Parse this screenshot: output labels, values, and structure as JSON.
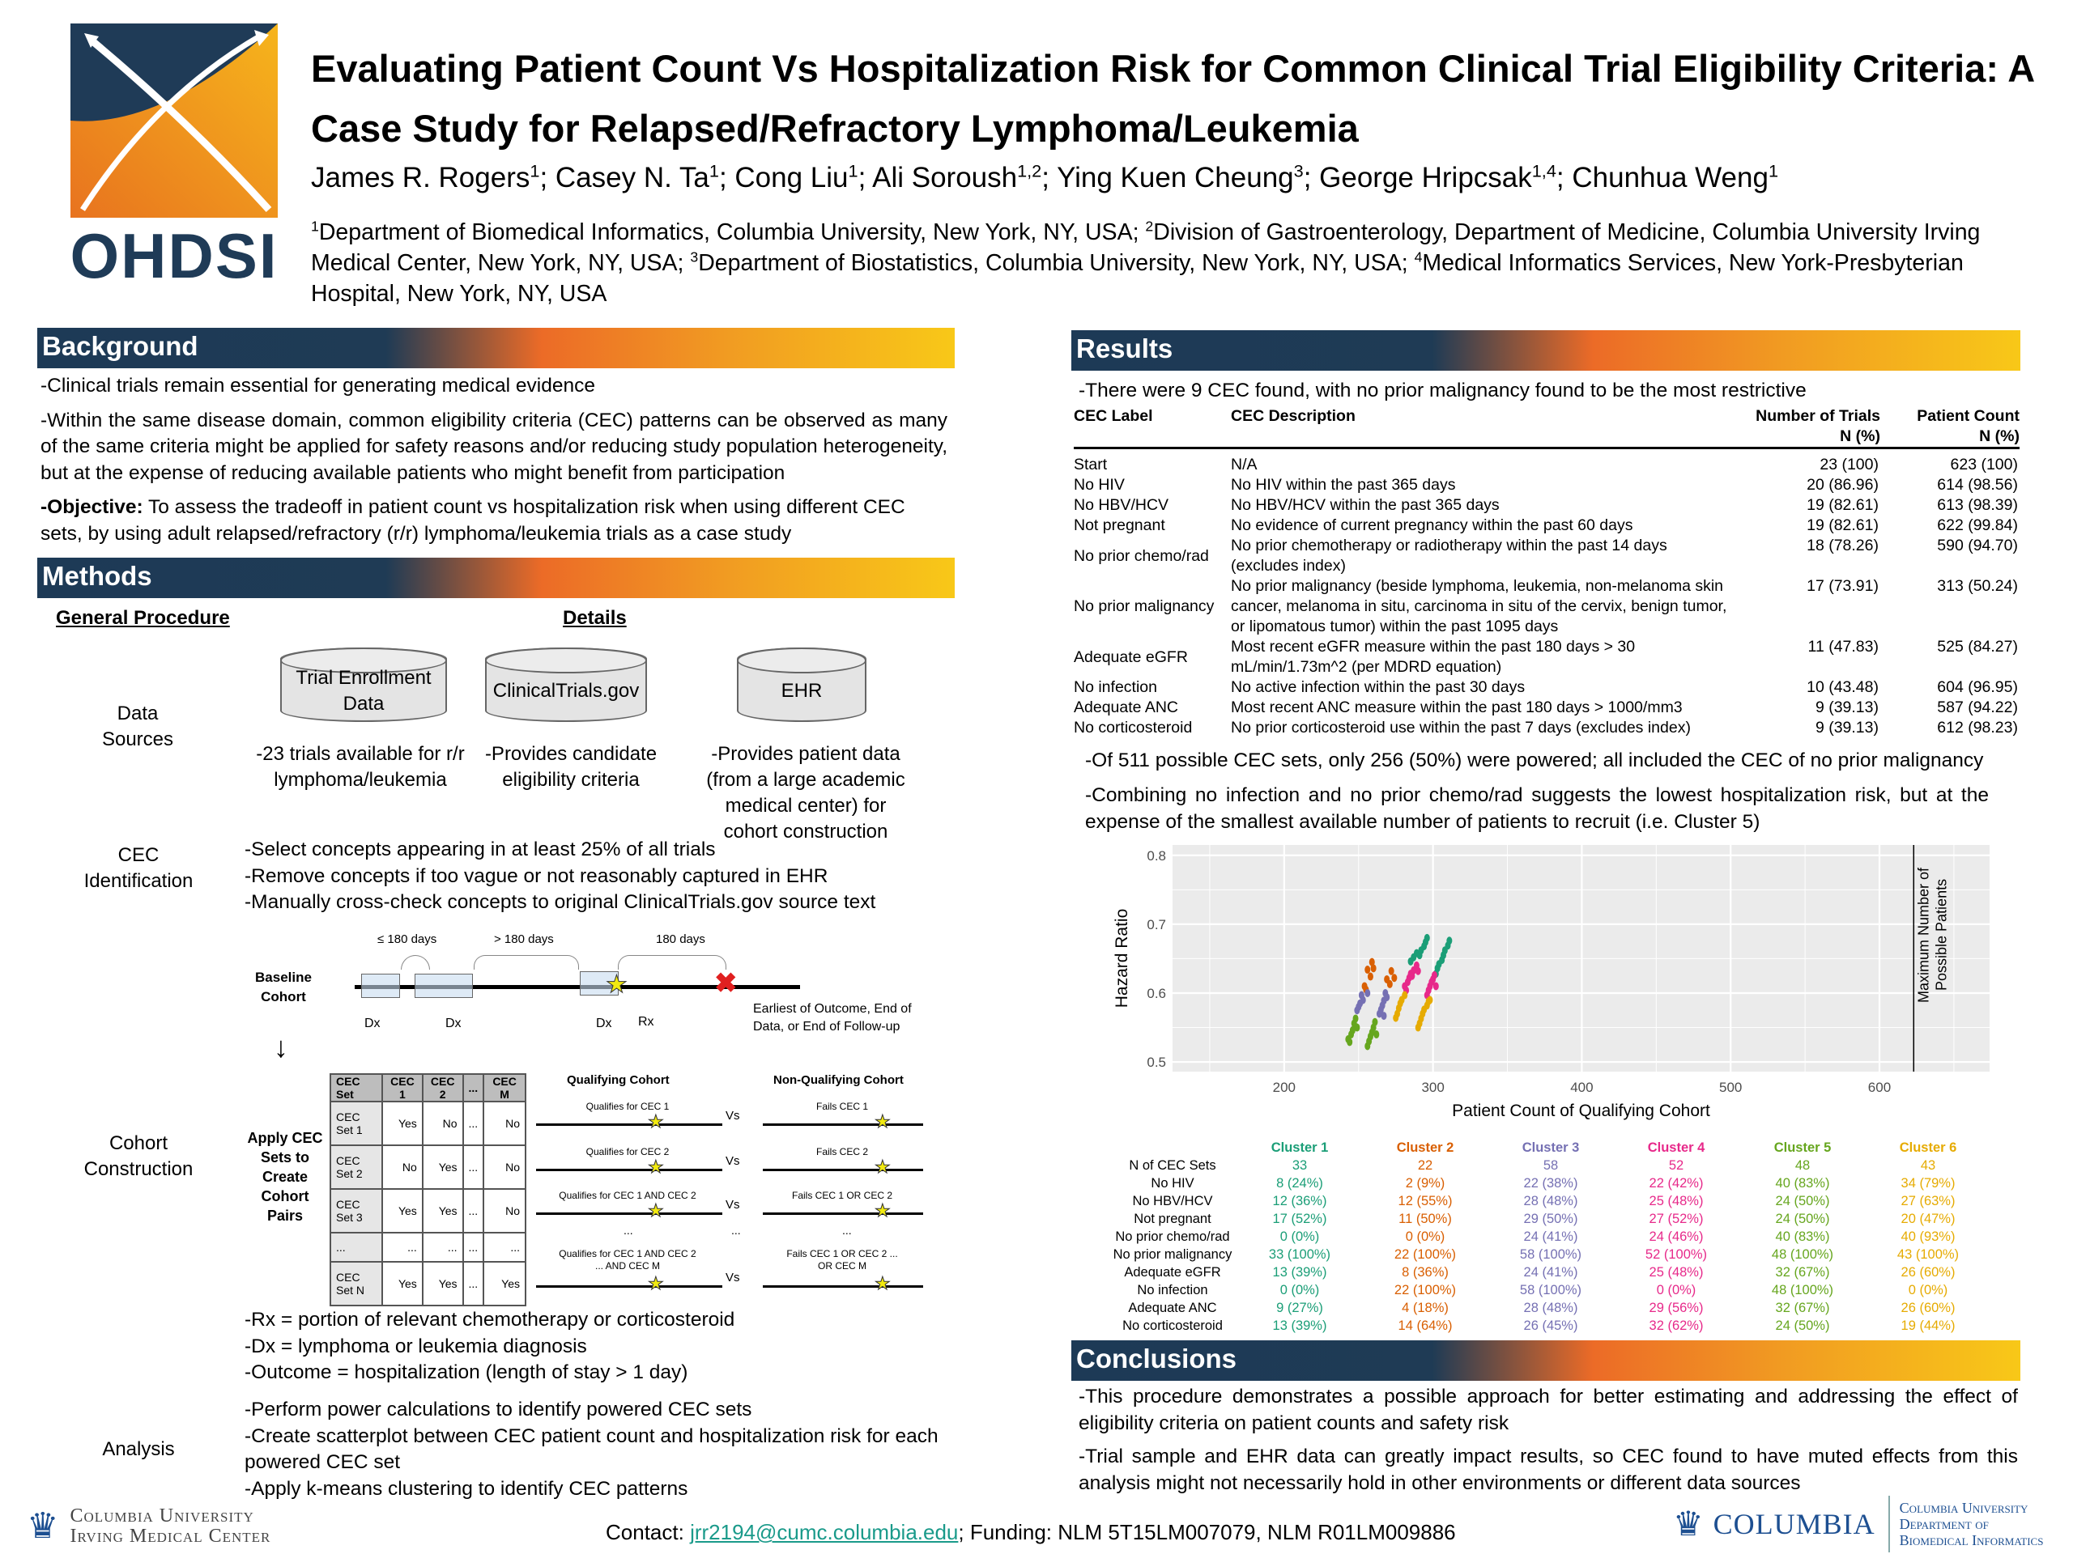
{
  "header": {
    "logo_text": "OHDSI",
    "title": "Evaluating Patient Count Vs Hospitalization Risk for Common Clinical Trial Eligibility Criteria: A Case Study for Relapsed/Refractory Lymphoma/Leukemia",
    "authors": [
      {
        "name": "James R. Rogers",
        "sup": "1"
      },
      {
        "name": "Casey N. Ta",
        "sup": "1"
      },
      {
        "name": "Cong Liu",
        "sup": "1"
      },
      {
        "name": "Ali Soroush",
        "sup": "1,2"
      },
      {
        "name": "Ying Kuen Cheung",
        "sup": "3"
      },
      {
        "name": "George Hripcsak",
        "sup": "1,4"
      },
      {
        "name": "Chunhua Weng",
        "sup": "1"
      }
    ],
    "affiliations": [
      {
        "sup": "1",
        "text": "Department of Biomedical Informatics, Columbia University, New York, NY, USA; "
      },
      {
        "sup": "2",
        "text": "Division of Gastroenterology, Department of Medicine, Columbia University Irving Medical Center, New York, NY, USA; "
      },
      {
        "sup": "3",
        "text": "Department of Biostatistics, Columbia University, New York, NY, USA; "
      },
      {
        "sup": "4",
        "text": "Medical Informatics Services, New York-Presbyterian Hospital, New York, NY, USA"
      }
    ]
  },
  "background": {
    "heading": "Background",
    "p1": "-Clinical trials remain essential for generating medical evidence",
    "p2": "-Within the same disease domain, common eligibility criteria (CEC) patterns can be observed as many of the same criteria might be applied for safety reasons and/or reducing study population heterogeneity, but at the expense of reducing available patients who might benefit from participation",
    "p3_label": "-Objective:",
    "p3": " To assess the tradeoff in patient count vs hospitalization risk when using different CEC sets, by using adult relapsed/refractory (r/r) lymphoma/leukemia trials as a case study"
  },
  "methods": {
    "heading": "Methods",
    "col1": "General Procedure",
    "col2": "Details",
    "data_sources_label": "Data Sources",
    "sources": [
      {
        "name": "Trial Enrollment Data",
        "caption": "-23 trials available for r/r lymphoma/leukemia"
      },
      {
        "name": "ClinicalTrials.gov",
        "caption": "-Provides candidate eligibility criteria"
      },
      {
        "name": "EHR",
        "caption": "-Provides patient data (from a large academic medical center) for cohort construction"
      }
    ],
    "cec_label": "CEC Identification",
    "cec_bullets": [
      "-Select concepts appearing in at least 25% of all trials",
      "-Remove concepts if too vague or not reasonably captured in EHR",
      "-Manually cross-check concepts to original ClinicalTrials.gov source text"
    ],
    "timeline": {
      "cohort": "Baseline Cohort",
      "gap1": "≤ 180 days",
      "gap2": "> 180 days",
      "gap3": "180 days",
      "dx": "Dx",
      "rx": "Rx",
      "end": "Earliest of Outcome, End of Data, or End of Follow-up"
    },
    "cohort_label": "Cohort Construction",
    "apply_label": "Apply CEC Sets to Create Cohort Pairs",
    "grid": {
      "headers": [
        "CEC Set",
        "CEC 1",
        "CEC 2",
        "...",
        "CEC M"
      ],
      "rows": [
        [
          "CEC Set 1",
          "Yes",
          "No",
          "...",
          "No"
        ],
        [
          "CEC Set 2",
          "No",
          "Yes",
          "...",
          "No"
        ],
        [
          "CEC Set 3",
          "Yes",
          "Yes",
          "...",
          "No"
        ],
        [
          "...",
          "...",
          "...",
          "...",
          "..."
        ],
        [
          "CEC Set N",
          "Yes",
          "Yes",
          "...",
          "Yes"
        ]
      ]
    },
    "qual_head": "Qualifying Cohort",
    "nonqual_head": "Non-Qualifying Cohort",
    "vs": "Vs",
    "ellipsis": "...",
    "qual": [
      "Qualifies for CEC 1",
      "Qualifies for CEC 2",
      "Qualifies for CEC 1 AND CEC 2",
      "Qualifies for CEC 1 AND CEC 2 ... AND CEC M"
    ],
    "nonqual": [
      "Fails CEC 1",
      "Fails CEC 2",
      "Fails CEC 1 OR CEC 2",
      "Fails CEC 1 OR CEC 2 ... OR CEC M"
    ],
    "defs": [
      "-Rx = portion of relevant chemotherapy or corticosteroid",
      "-Dx = lymphoma or leukemia diagnosis",
      "-Outcome = hospitalization (length of stay > 1 day)"
    ],
    "analysis_label": "Analysis",
    "analysis": [
      "-Perform power calculations to identify powered CEC sets",
      "-Create scatterplot between CEC patient count and hospitalization risk for each powered CEC set",
      "-Apply k-means clustering to identify CEC patterns"
    ]
  },
  "results": {
    "heading": "Results",
    "intro": "-There were 9 CEC found, with no prior malignancy found to be the most restrictive",
    "table_headers": {
      "label": "CEC Label",
      "desc": "CEC Description",
      "trials": "Number of Trials",
      "trials_sub": "N (%)",
      "patients": "Patient Count",
      "patients_sub": "N (%)"
    },
    "rows": [
      {
        "label": "Start",
        "desc": "N/A",
        "trials": "23 (100)",
        "patients": "623 (100)"
      },
      {
        "label": "No HIV",
        "desc": "No HIV within the past 365 days",
        "trials": "20 (86.96)",
        "patients": "614 (98.56)"
      },
      {
        "label": "No HBV/HCV",
        "desc": "No HBV/HCV within the past 365 days",
        "trials": "19 (82.61)",
        "patients": "613 (98.39)"
      },
      {
        "label": "Not pregnant",
        "desc": "No evidence of current pregnancy within the past 60 days",
        "trials": "19 (82.61)",
        "patients": "622 (99.84)"
      },
      {
        "label": "No prior chemo/rad",
        "desc": "No prior chemotherapy or radiotherapy within the past 14 days (excludes index)",
        "trials": "18 (78.26)",
        "patients": "590 (94.70)"
      },
      {
        "label": "No prior malignancy",
        "desc": "No prior malignancy (beside lymphoma, leukemia, non-melanoma skin cancer, melanoma in situ, carcinoma in situ of the cervix, benign tumor, or lipomatous tumor) within the past 1095 days",
        "trials": "17 (73.91)",
        "patients": "313 (50.24)"
      },
      {
        "label": "Adequate eGFR",
        "desc": "Most recent eGFR measure within the past 180 days > 30 mL/min/1.73m^2 (per MDRD equation)",
        "trials": "11 (47.83)",
        "patients": "525 (84.27)"
      },
      {
        "label": "No infection",
        "desc": "No active infection within the past 30 days",
        "trials": "10 (43.48)",
        "patients": "604 (96.95)"
      },
      {
        "label": "Adequate ANC",
        "desc": "Most recent ANC measure within the past 180 days > 1000/mm3",
        "trials": "9 (39.13)",
        "patients": "587 (94.22)"
      },
      {
        "label": "No corticosteroid",
        "desc": "No prior corticosteroid use within the past 7 days (excludes index)",
        "trials": "9 (39.13)",
        "patients": "612 (98.23)"
      }
    ],
    "p2": "-Of 511 possible CEC sets, only 256 (50%) were powered; all included the CEC of no prior malignancy",
    "p3": "-Combining no infection and no prior chemo/rad suggests the lowest hospitalization risk, but at the expense of the smallest available number of patients to recruit (i.e. Cluster 5)",
    "clusters": {
      "row_labels": [
        "N of CEC Sets",
        "No HIV",
        "No HBV/HCV",
        "Not pregnant",
        "No prior chemo/rad",
        "No prior malignancy",
        "Adequate eGFR",
        "No infection",
        "Adequate ANC",
        "No corticosteroid"
      ],
      "columns": [
        {
          "name": "Cluster 1",
          "color": "#1b9e77",
          "values": [
            "33",
            "8 (24%)",
            "12 (36%)",
            "17 (52%)",
            "0 (0%)",
            "33 (100%)",
            "13 (39%)",
            "0 (0%)",
            "9 (27%)",
            "13 (39%)"
          ]
        },
        {
          "name": "Cluster 2",
          "color": "#d95f02",
          "values": [
            "22",
            "2 (9%)",
            "12 (55%)",
            "11 (50%)",
            "0 (0%)",
            "22 (100%)",
            "8 (36%)",
            "22 (100%)",
            "4 (18%)",
            "14 (64%)"
          ]
        },
        {
          "name": "Cluster 3",
          "color": "#7570b3",
          "values": [
            "58",
            "22 (38%)",
            "28 (48%)",
            "29 (50%)",
            "24 (41%)",
            "58 (100%)",
            "24 (41%)",
            "58 (100%)",
            "28 (48%)",
            "26 (45%)"
          ]
        },
        {
          "name": "Cluster 4",
          "color": "#e7298a",
          "values": [
            "52",
            "22 (42%)",
            "25 (48%)",
            "27 (52%)",
            "24 (46%)",
            "52 (100%)",
            "25 (48%)",
            "0 (0%)",
            "29 (56%)",
            "32 (62%)"
          ]
        },
        {
          "name": "Cluster 5",
          "color": "#66a61e",
          "values": [
            "48",
            "40 (83%)",
            "24 (50%)",
            "24 (50%)",
            "40 (83%)",
            "48 (100%)",
            "32 (67%)",
            "48 (100%)",
            "32 (67%)",
            "24 (50%)"
          ]
        },
        {
          "name": "Cluster 6",
          "color": "#e6ab02",
          "values": [
            "43",
            "34 (79%)",
            "27 (63%)",
            "20 (47%)",
            "40 (93%)",
            "43 (100%)",
            "26 (60%)",
            "0 (0%)",
            "26 (60%)",
            "19 (44%)"
          ]
        }
      ]
    }
  },
  "chart_data": {
    "type": "scatter",
    "title": "",
    "xlabel": "Patient Count of Qualifying Cohort",
    "ylabel": "Hazard Ratio",
    "xlim": [
      125,
      674
    ],
    "ylim": [
      0.486,
      0.815
    ],
    "xticks": [
      200,
      300,
      400,
      500,
      600
    ],
    "yticks": [
      0.5,
      0.6,
      0.7,
      0.8
    ],
    "ytick_labels": [
      "0.5",
      "0.6",
      "0.7",
      "0.8"
    ],
    "grid": true,
    "vline": {
      "x": 623,
      "label1": "Maximum Number of",
      "label2": "Possible Patients"
    },
    "series": [
      {
        "name": "Cluster 1",
        "color": "#1b9e77",
        "points": [
          [
            285,
            0.646
          ],
          [
            287,
            0.652
          ],
          [
            289,
            0.658
          ],
          [
            291,
            0.655
          ],
          [
            292,
            0.662
          ],
          [
            294,
            0.668
          ],
          [
            295,
            0.674
          ],
          [
            296,
            0.68
          ],
          [
            302,
            0.628
          ],
          [
            303,
            0.636
          ],
          [
            304,
            0.642
          ],
          [
            306,
            0.648
          ],
          [
            307,
            0.655
          ],
          [
            308,
            0.662
          ],
          [
            310,
            0.669
          ],
          [
            311,
            0.676
          ]
        ]
      },
      {
        "name": "Cluster 2",
        "color": "#d95f02",
        "points": [
          [
            254,
            0.61
          ],
          [
            255,
            0.605
          ],
          [
            256,
            0.634
          ],
          [
            258,
            0.624
          ],
          [
            259,
            0.645
          ],
          [
            260,
            0.636
          ],
          [
            269,
            0.62
          ],
          [
            271,
            0.613
          ],
          [
            272,
            0.632
          ],
          [
            274,
            0.622
          ]
        ]
      },
      {
        "name": "Cluster 3",
        "color": "#7570b3",
        "points": [
          [
            249,
            0.575
          ],
          [
            250,
            0.58
          ],
          [
            251,
            0.585
          ],
          [
            252,
            0.597
          ],
          [
            253,
            0.59
          ],
          [
            256,
            0.6
          ],
          [
            264,
            0.57
          ],
          [
            265,
            0.576
          ],
          [
            266,
            0.582
          ],
          [
            267,
            0.589
          ],
          [
            268,
            0.6
          ],
          [
            269,
            0.594
          ],
          [
            267,
            0.567
          ]
        ]
      },
      {
        "name": "Cluster 4",
        "color": "#e7298a",
        "points": [
          [
            281,
            0.61
          ],
          [
            282,
            0.604
          ],
          [
            283,
            0.616
          ],
          [
            284,
            0.622
          ],
          [
            285,
            0.628
          ],
          [
            286,
            0.625
          ],
          [
            287,
            0.633
          ],
          [
            289,
            0.64
          ],
          [
            290,
            0.632
          ],
          [
            296,
            0.597
          ],
          [
            297,
            0.604
          ],
          [
            298,
            0.61
          ],
          [
            299,
            0.616
          ],
          [
            300,
            0.62
          ],
          [
            301,
            0.626
          ],
          [
            302,
            0.61
          ]
        ]
      },
      {
        "name": "Cluster 5",
        "color": "#66a61e",
        "points": [
          [
            243,
            0.533
          ],
          [
            244,
            0.529
          ],
          [
            245,
            0.54
          ],
          [
            246,
            0.546
          ],
          [
            247,
            0.556
          ],
          [
            248,
            0.563
          ],
          [
            249,
            0.55
          ],
          [
            256,
            0.523
          ],
          [
            257,
            0.53
          ],
          [
            258,
            0.537
          ],
          [
            259,
            0.543
          ],
          [
            260,
            0.55
          ],
          [
            261,
            0.558
          ],
          [
            262,
            0.54
          ]
        ]
      },
      {
        "name": "Cluster 6",
        "color": "#e6ab02",
        "points": [
          [
            275,
            0.564
          ],
          [
            276,
            0.57
          ],
          [
            277,
            0.578
          ],
          [
            278,
            0.585
          ],
          [
            279,
            0.59
          ],
          [
            281,
            0.597
          ],
          [
            290,
            0.55
          ],
          [
            291,
            0.556
          ],
          [
            292,
            0.563
          ],
          [
            293,
            0.57
          ],
          [
            294,
            0.576
          ],
          [
            296,
            0.582
          ],
          [
            297,
            0.588
          ],
          [
            298,
            0.59
          ]
        ]
      }
    ]
  },
  "conclusions": {
    "heading": "Conclusions",
    "p1": "-This procedure demonstrates a possible approach for better estimating and addressing the effect of eligibility criteria on patient counts and safety risk",
    "p2": "-Trial sample and EHR data can greatly impact results, so CEC found to have muted effects from this analysis might not necessarily hold in other environments or different data sources"
  },
  "footer": {
    "left_logo_1": "Columbia University",
    "left_logo_2": "Irving Medical Center",
    "contact_label": "Contact: ",
    "email": "jrr2194@cumc.columbia.edu",
    "funding": "; Funding: NLM 5T15LM007079, NLM R01LM009886",
    "right_logo_main": "Columbia",
    "right_logo_1": "Columbia University",
    "right_logo_2": "Department of",
    "right_logo_3": "Biomedical Informatics"
  }
}
